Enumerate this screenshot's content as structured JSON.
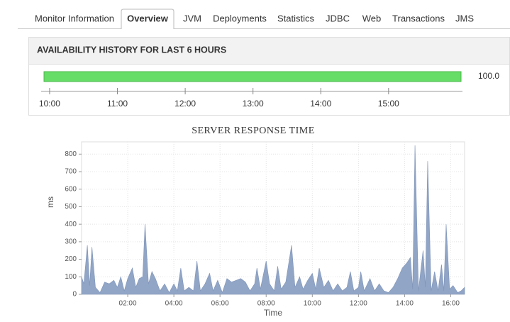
{
  "tabs": {
    "items": [
      "Monitor Information",
      "Overview",
      "JVM",
      "Deployments",
      "Statistics",
      "JDBC",
      "Web",
      "Transactions",
      "JMS"
    ],
    "active": 1
  },
  "availability": {
    "title": "AVAILABILITY HISTORY FOR LAST 6 HOURS",
    "value": 100,
    "value_label": "100.0",
    "vlim": [
      0,
      100
    ],
    "color": "#66dd66",
    "xlim": [
      9.875,
      16.09
    ],
    "xticks": [
      {
        "value": 10,
        "label": "10:00"
      },
      {
        "value": 11,
        "label": "11:00"
      },
      {
        "value": 12,
        "label": "12:00"
      },
      {
        "value": 13,
        "label": "13:00"
      },
      {
        "value": 14,
        "label": "14:00"
      },
      {
        "value": 15,
        "label": "15:00"
      }
    ]
  },
  "chart_data": {
    "type": "area",
    "title": "SERVER RESPONSE TIME",
    "y_label": "ms",
    "x_label": "Time",
    "color": "#91a5c6",
    "grid": true,
    "xlim": [
      0,
      16.6
    ],
    "ylim": [
      0,
      870
    ],
    "xticks": [
      {
        "value": 2,
        "label": "02:00"
      },
      {
        "value": 4,
        "label": "04:00"
      },
      {
        "value": 6,
        "label": "06:00"
      },
      {
        "value": 8,
        "label": "08:00"
      },
      {
        "value": 10,
        "label": "10:00"
      },
      {
        "value": 12,
        "label": "12:00"
      },
      {
        "value": 14,
        "label": "14:00"
      },
      {
        "value": 16,
        "label": "16:00"
      }
    ],
    "yticks": [
      0,
      100,
      200,
      300,
      400,
      500,
      600,
      700,
      800
    ],
    "x": [
      0,
      0.1,
      0.25,
      0.35,
      0.45,
      0.6,
      0.8,
      1.0,
      1.2,
      1.4,
      1.55,
      1.7,
      1.85,
      2.0,
      2.2,
      2.35,
      2.5,
      2.65,
      2.75,
      2.9,
      3.05,
      3.2,
      3.4,
      3.6,
      3.8,
      4.0,
      4.15,
      4.3,
      4.45,
      4.65,
      4.85,
      5.0,
      5.15,
      5.35,
      5.55,
      5.7,
      5.9,
      6.1,
      6.3,
      6.5,
      6.7,
      6.9,
      7.1,
      7.3,
      7.5,
      7.6,
      7.75,
      8.0,
      8.15,
      8.35,
      8.5,
      8.65,
      8.85,
      9.1,
      9.25,
      9.45,
      9.6,
      9.8,
      10.0,
      10.15,
      10.3,
      10.5,
      10.7,
      10.9,
      11.1,
      11.3,
      11.5,
      11.65,
      11.8,
      12.0,
      12.1,
      12.25,
      12.5,
      12.7,
      12.9,
      13.1,
      13.3,
      13.5,
      13.7,
      13.9,
      14.1,
      14.25,
      14.35,
      14.45,
      14.6,
      14.8,
      14.9,
      15.0,
      15.15,
      15.3,
      15.45,
      15.6,
      15.7,
      15.8,
      15.95,
      16.1,
      16.3,
      16.45,
      16.6
    ],
    "values": [
      100,
      60,
      280,
      50,
      270,
      40,
      10,
      70,
      60,
      80,
      40,
      100,
      20,
      90,
      150,
      40,
      90,
      100,
      400,
      60,
      130,
      90,
      20,
      60,
      10,
      60,
      20,
      150,
      20,
      40,
      20,
      190,
      20,
      60,
      120,
      20,
      80,
      10,
      90,
      70,
      80,
      90,
      70,
      20,
      60,
      150,
      30,
      190,
      60,
      20,
      160,
      30,
      70,
      280,
      40,
      100,
      30,
      80,
      120,
      30,
      150,
      40,
      80,
      20,
      60,
      20,
      40,
      130,
      20,
      40,
      130,
      20,
      90,
      20,
      60,
      20,
      10,
      40,
      90,
      150,
      180,
      210,
      30,
      850,
      20,
      250,
      40,
      760,
      20,
      130,
      20,
      170,
      20,
      400,
      30,
      50,
      10,
      20,
      40
    ]
  }
}
